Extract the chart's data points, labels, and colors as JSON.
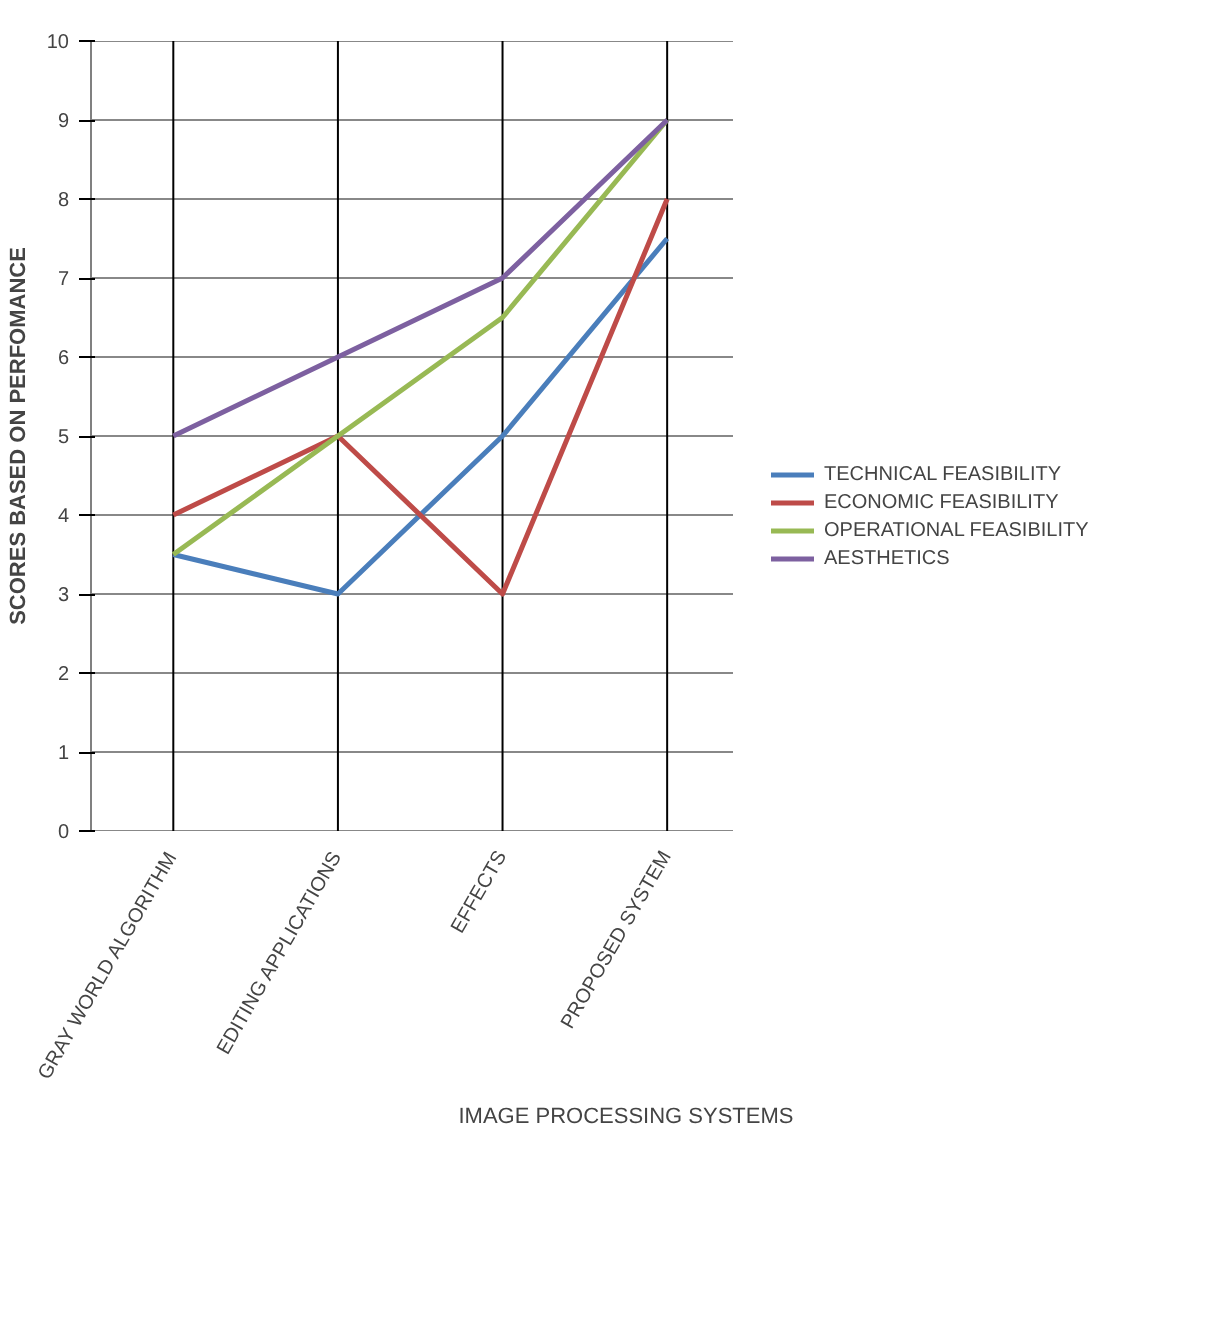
{
  "chart_data": {
    "type": "line",
    "xlabel": "IMAGE PROCESSING SYSTEMS",
    "ylabel": "SCORES BASED ON PERFOMANCE",
    "categories": [
      "GRAY WORLD ALGORITHM",
      "EDITING APPLICATIONS",
      "EFFECTS",
      "PROPOSED SYSTEM"
    ],
    "series": [
      {
        "name": "TECHNICAL FEASIBILITY",
        "color": "#4a7ebb",
        "values": [
          3.5,
          3,
          5,
          7.5
        ]
      },
      {
        "name": "ECONOMIC FEASIBILITY",
        "color": "#be4b48",
        "values": [
          4,
          5,
          3,
          8
        ]
      },
      {
        "name": "OPERATIONAL FEASIBILITY",
        "color": "#98b954",
        "values": [
          3.5,
          5,
          6.5,
          9
        ]
      },
      {
        "name": "AESTHETICS",
        "color": "#7d60a0",
        "values": [
          5,
          6,
          7,
          9
        ]
      }
    ],
    "ylim": [
      0,
      10
    ],
    "yticks": [
      0,
      1,
      2,
      3,
      4,
      5,
      6,
      7,
      8,
      9,
      10
    ],
    "grid": true,
    "legend": "right",
    "marker": "none",
    "line_style": "solid"
  }
}
